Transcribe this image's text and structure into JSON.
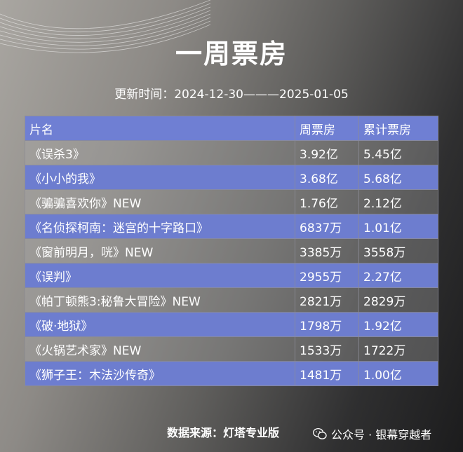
{
  "title": "一周票房",
  "subtitle": "更新时间：2024-12-30———2025-01-05",
  "table": {
    "headers": [
      "片名",
      "周票房",
      "累计票房"
    ],
    "rows": [
      {
        "name": "《误杀3》",
        "week": "3.92亿",
        "total": "5.45亿"
      },
      {
        "name": "《小小的我》",
        "week": "3.68亿",
        "total": "5.68亿"
      },
      {
        "name": "《骗骗喜欢你》NEW",
        "week": "1.76亿",
        "total": "2.12亿"
      },
      {
        "name": "《名侦探柯南：迷宫的十字路口》",
        "week": "6837万",
        "total": "1.01亿"
      },
      {
        "name": "《窗前明月，咣》NEW",
        "week": "3385万",
        "total": "3558万"
      },
      {
        "name": "《误判》",
        "week": "2955万",
        "total": "2.27亿"
      },
      {
        "name": "《帕丁顿熊3:秘鲁大冒险》NEW",
        "week": "2821万",
        "total": "2829万"
      },
      {
        "name": "《破·地狱》",
        "week": "1798万",
        "total": "1.92亿"
      },
      {
        "name": "《火锅艺术家》NEW",
        "week": "1533万",
        "total": "1722万"
      },
      {
        "name": "《狮子王：木法沙传奇》",
        "week": "1481万",
        "total": "1.00亿"
      }
    ]
  },
  "footer": {
    "source": "数据来源：灯塔专业版",
    "wechat": "公众号 · 银幕穿越者",
    "wechat_icon": "wechat-icon"
  }
}
